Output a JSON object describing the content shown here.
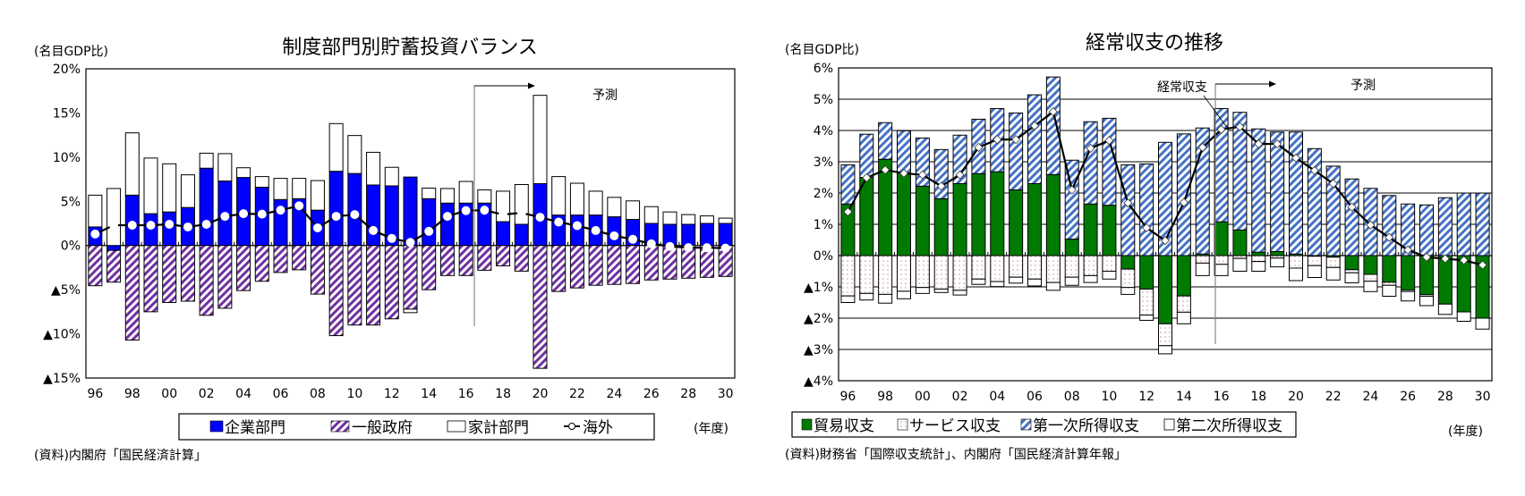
{
  "chart_data": [
    {
      "type": "bar",
      "stacked": true,
      "title": "制度部門別貯蓄投資バランス",
      "ylabel": "(名目GDP比)",
      "xlabel": "(年度)",
      "source": "(資料)内閣府「国民経済計算」",
      "ylim": [
        -15,
        20
      ],
      "yticks": [
        20,
        15,
        10,
        5,
        0,
        -5,
        -10,
        -15
      ],
      "ytick_labels": [
        "20%",
        "15%",
        "10%",
        "5%",
        "0%",
        "▲5%",
        "▲10%",
        "▲15%"
      ],
      "grid": false,
      "categories": [
        "96",
        "97",
        "98",
        "99",
        "00",
        "01",
        "02",
        "03",
        "04",
        "05",
        "06",
        "07",
        "08",
        "09",
        "10",
        "11",
        "12",
        "13",
        "14",
        "15",
        "16",
        "17",
        "18",
        "19",
        "20",
        "21",
        "22",
        "23",
        "24",
        "25",
        "26",
        "27",
        "28",
        "29",
        "30"
      ],
      "xtick_labels": [
        "96",
        "98",
        "00",
        "02",
        "04",
        "06",
        "08",
        "10",
        "12",
        "14",
        "16",
        "18",
        "20",
        "22",
        "24",
        "26",
        "28",
        "30"
      ],
      "forecast_start": "19/20",
      "forecast_label": "予測",
      "legend_position": "bottom",
      "series": [
        {
          "name": "企業部門",
          "kind": "bar",
          "color": "#0000ff",
          "pattern": "solid",
          "values": [
            2.1,
            -0.55,
            5.7,
            3.6,
            3.8,
            4.3,
            8.75,
            7.3,
            7.7,
            6.6,
            5.2,
            5.3,
            4.0,
            8.4,
            8.15,
            6.85,
            6.75,
            7.75,
            5.3,
            4.8,
            4.8,
            4.8,
            2.7,
            2.4,
            7.0,
            3.45,
            3.45,
            3.45,
            3.25,
            2.95,
            2.5,
            2.4,
            2.4,
            2.5,
            2.5
          ]
        },
        {
          "name": "一般政府",
          "kind": "bar",
          "color": "#7030a0",
          "pattern": "hatch",
          "values": [
            -4.55,
            -3.6,
            -10.7,
            -7.5,
            -6.45,
            -6.3,
            -7.9,
            -7.1,
            -5.1,
            -4.05,
            -3.05,
            -2.75,
            -5.5,
            -10.2,
            -9.0,
            -9.0,
            -8.3,
            -7.2,
            -5.0,
            -3.4,
            -3.4,
            -2.8,
            -2.3,
            -2.9,
            -13.9,
            -5.2,
            -4.8,
            -4.5,
            -4.4,
            -4.3,
            -3.9,
            -3.8,
            -3.7,
            -3.6,
            -3.5
          ]
        },
        {
          "name": "家計部門",
          "kind": "bar",
          "color": "#ffffff",
          "pattern": "outline",
          "values": [
            3.6,
            6.45,
            7.05,
            6.3,
            5.45,
            3.7,
            1.7,
            3.1,
            1.1,
            1.2,
            2.4,
            2.3,
            3.35,
            5.4,
            4.3,
            3.7,
            2.1,
            -0.4,
            1.2,
            1.65,
            2.45,
            1.5,
            3.45,
            4.5,
            10.0,
            4.35,
            3.6,
            2.7,
            2.2,
            2.1,
            1.9,
            1.4,
            1.1,
            0.85,
            0.6
          ]
        },
        {
          "name": "海外",
          "kind": "line",
          "color": "#000000",
          "marker": "circle",
          "values": [
            1.3,
            2.3,
            2.3,
            2.3,
            2.4,
            2.1,
            2.4,
            3.3,
            3.6,
            3.55,
            4.0,
            4.5,
            2.0,
            3.3,
            3.5,
            1.7,
            0.8,
            0.35,
            1.6,
            3.3,
            3.95,
            4.0,
            3.5,
            3.7,
            3.2,
            2.65,
            2.25,
            1.7,
            1.1,
            0.7,
            0.2,
            -0.1,
            -0.25,
            -0.25,
            -0.3
          ]
        }
      ]
    },
    {
      "type": "bar",
      "stacked": true,
      "title": "経常収支の推移",
      "ylabel": "(名目GDP比)",
      "xlabel": "(年度)",
      "source": "(資料)財務省「国際収支統計」、内閣府「国民経済計算年報」",
      "ylim": [
        -4,
        6
      ],
      "yticks": [
        6,
        5,
        4,
        3,
        2,
        1,
        0,
        -1,
        -2,
        -3,
        -4
      ],
      "ytick_labels": [
        "6%",
        "5%",
        "4%",
        "3%",
        "2%",
        "1%",
        "0%",
        "▲1%",
        "▲2%",
        "▲3%",
        "▲4%"
      ],
      "grid": true,
      "categories": [
        "96",
        "97",
        "98",
        "99",
        "00",
        "01",
        "02",
        "03",
        "04",
        "05",
        "06",
        "07",
        "08",
        "09",
        "10",
        "11",
        "12",
        "13",
        "14",
        "15",
        "16",
        "17",
        "18",
        "19",
        "20",
        "21",
        "22",
        "23",
        "24",
        "25",
        "26",
        "27",
        "28",
        "29",
        "30"
      ],
      "xtick_labels": [
        "96",
        "98",
        "00",
        "02",
        "04",
        "06",
        "08",
        "10",
        "12",
        "14",
        "16",
        "18",
        "20",
        "22",
        "24",
        "26",
        "28",
        "30"
      ],
      "forecast_start": "19/20",
      "forecast_label": "予測",
      "line_annotation": "経常収支",
      "legend_position": "bottom",
      "series": [
        {
          "name": "貿易収支",
          "kind": "bar",
          "color": "#007a00",
          "pattern": "solid",
          "values": [
            1.65,
            2.5,
            3.08,
            2.65,
            2.22,
            1.82,
            2.3,
            2.62,
            2.68,
            2.1,
            2.3,
            2.59,
            0.53,
            1.65,
            1.61,
            -0.43,
            -1.07,
            -2.18,
            -1.29,
            0.05,
            1.08,
            0.82,
            0.11,
            0.13,
            0.05,
            -0.02,
            -0.05,
            -0.45,
            -0.6,
            -0.85,
            -1.1,
            -1.25,
            -1.55,
            -1.8,
            -2.0
          ]
        },
        {
          "name": "サービス収支",
          "kind": "bar",
          "color": "#ffffff",
          "pattern": "dotted",
          "values": [
            -1.29,
            -1.21,
            -1.24,
            -1.14,
            -1.02,
            -1.07,
            -1.11,
            -0.75,
            -0.83,
            -0.69,
            -0.75,
            -0.86,
            -0.69,
            -0.64,
            -0.5,
            -0.59,
            -0.83,
            -0.7,
            -0.52,
            -0.24,
            -0.28,
            -0.09,
            -0.19,
            -0.08,
            -0.4,
            -0.3,
            -0.33,
            -0.1,
            -0.22,
            -0.1,
            -0.05,
            -0.05,
            0.0,
            0.0,
            0.0
          ]
        },
        {
          "name": "第一次所得収支",
          "kind": "bar",
          "color": "#4472c4",
          "pattern": "hatch",
          "values": [
            1.25,
            1.38,
            1.17,
            1.34,
            1.54,
            1.57,
            1.55,
            1.74,
            2.02,
            2.46,
            2.84,
            3.12,
            2.52,
            2.63,
            2.78,
            2.9,
            2.93,
            3.62,
            3.89,
            4.03,
            3.62,
            3.76,
            3.94,
            3.82,
            3.9,
            3.42,
            2.86,
            2.45,
            2.15,
            1.92,
            1.65,
            1.62,
            1.85,
            2.0,
            2.0
          ]
        },
        {
          "name": "第二次所得収支",
          "kind": "bar",
          "color": "#ffffff",
          "pattern": "outline",
          "values": [
            -0.21,
            -0.21,
            -0.28,
            -0.24,
            -0.19,
            -0.11,
            -0.15,
            -0.17,
            -0.16,
            -0.19,
            -0.22,
            -0.25,
            -0.26,
            -0.22,
            -0.25,
            -0.22,
            -0.17,
            -0.26,
            -0.37,
            -0.4,
            -0.36,
            -0.41,
            -0.31,
            -0.28,
            -0.4,
            -0.38,
            -0.4,
            -0.32,
            -0.33,
            -0.35,
            -0.3,
            -0.3,
            -0.33,
            -0.3,
            -0.35
          ]
        },
        {
          "name": "経常収支",
          "kind": "line",
          "color": "#000000",
          "marker": "diamond",
          "values": [
            1.4,
            2.49,
            2.74,
            2.63,
            2.58,
            2.22,
            2.58,
            3.46,
            3.71,
            3.71,
            4.15,
            4.6,
            2.1,
            3.43,
            3.68,
            1.68,
            0.89,
            0.48,
            1.7,
            3.46,
            4.03,
            4.12,
            3.57,
            3.57,
            3.12,
            2.72,
            2.3,
            1.55,
            0.98,
            0.58,
            0.18,
            -0.05,
            -0.1,
            -0.15,
            -0.3
          ]
        }
      ]
    }
  ]
}
